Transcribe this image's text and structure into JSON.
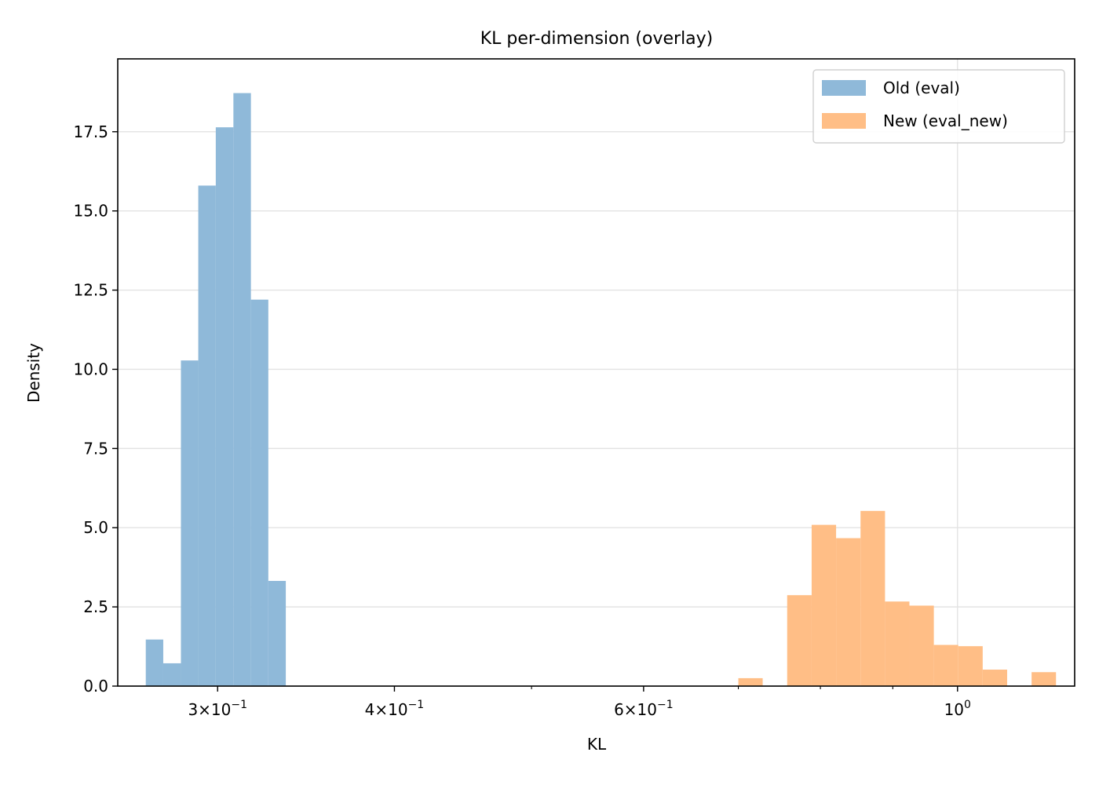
{
  "chart_data": {
    "type": "histogram",
    "title": "KL per-dimension (overlay)",
    "xlabel": "KL",
    "ylabel": "Density",
    "x_scale": "log",
    "xlim": [
      0.255,
      1.21
    ],
    "ylim": [
      0,
      19.8
    ],
    "grid": true,
    "legend_position": "top-right",
    "x_ticks": [
      {
        "value": 0.3,
        "mantissa": "3",
        "exponent": "−1"
      },
      {
        "value": 0.4,
        "mantissa": "4",
        "exponent": "−1"
      },
      {
        "value": 0.6,
        "mantissa": "6",
        "exponent": "−1"
      },
      {
        "value": 1.0,
        "mantissa": "10",
        "exponent": "0"
      }
    ],
    "y_ticks": [
      "0.0",
      "2.5",
      "5.0",
      "7.5",
      "10.0",
      "12.5",
      "15.0",
      "17.5"
    ],
    "series": [
      {
        "name": "Old (eval)",
        "color": "#8fb9d9",
        "bin_edges": [
          0.2669,
          0.2746,
          0.2826,
          0.2907,
          0.2991,
          0.3078,
          0.3167,
          0.3258,
          0.3352
        ],
        "values": [
          1.47,
          0.72,
          10.28,
          15.8,
          17.64,
          18.72,
          12.2,
          3.32
        ]
      },
      {
        "name": "New (eval_new)",
        "color": "#ffbe86",
        "bin_edges": [
          0.7,
          0.7283,
          0.7579,
          0.7887,
          0.8207,
          0.854,
          0.8887,
          0.9247,
          0.9622,
          1.0012,
          1.0418,
          1.0841,
          1.1281,
          1.1738
        ],
        "values": [
          0.25,
          0,
          2.87,
          5.09,
          4.67,
          5.53,
          2.67,
          2.54,
          1.3,
          1.26,
          0.52,
          0,
          0.44
        ]
      }
    ]
  }
}
